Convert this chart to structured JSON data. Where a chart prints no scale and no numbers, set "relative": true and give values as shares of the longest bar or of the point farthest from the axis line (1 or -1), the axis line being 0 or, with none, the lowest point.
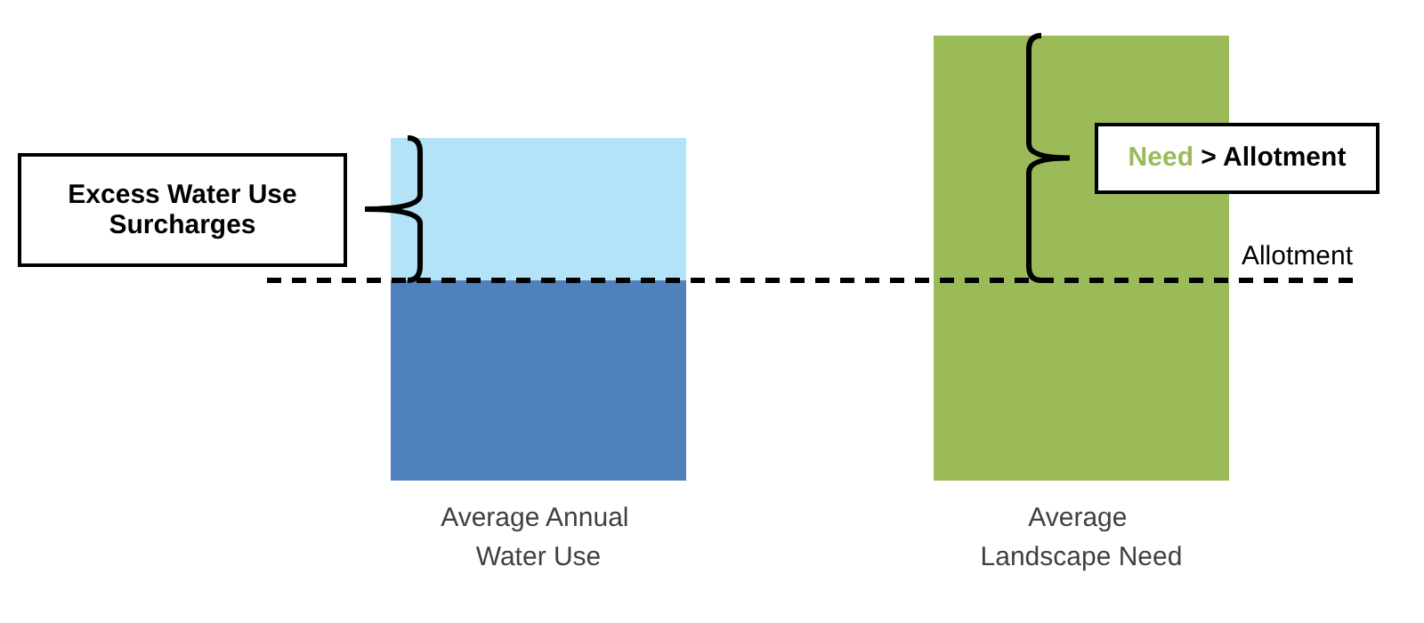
{
  "chart_data": {
    "type": "bar",
    "relative": true,
    "stacked": true,
    "categories": [
      "Average Annual Water Use",
      "Average Landscape Need"
    ],
    "series": [
      {
        "color": "#4f81bd",
        "values": [
          0.45,
          null
        ]
      },
      {
        "color": "#b4e2f7",
        "values": [
          0.32,
          null
        ]
      },
      {
        "color": "#9bbb59",
        "values": [
          null,
          1
        ]
      }
    ],
    "ref_lines": [
      {
        "axis": "y",
        "value": 0.45,
        "label": "Allotment",
        "line_style": "dashed",
        "color": "#000000"
      }
    ],
    "annotations": [
      "Excess Water Use Surcharges",
      "Need > Allotment"
    ],
    "grid": false
  }
}
